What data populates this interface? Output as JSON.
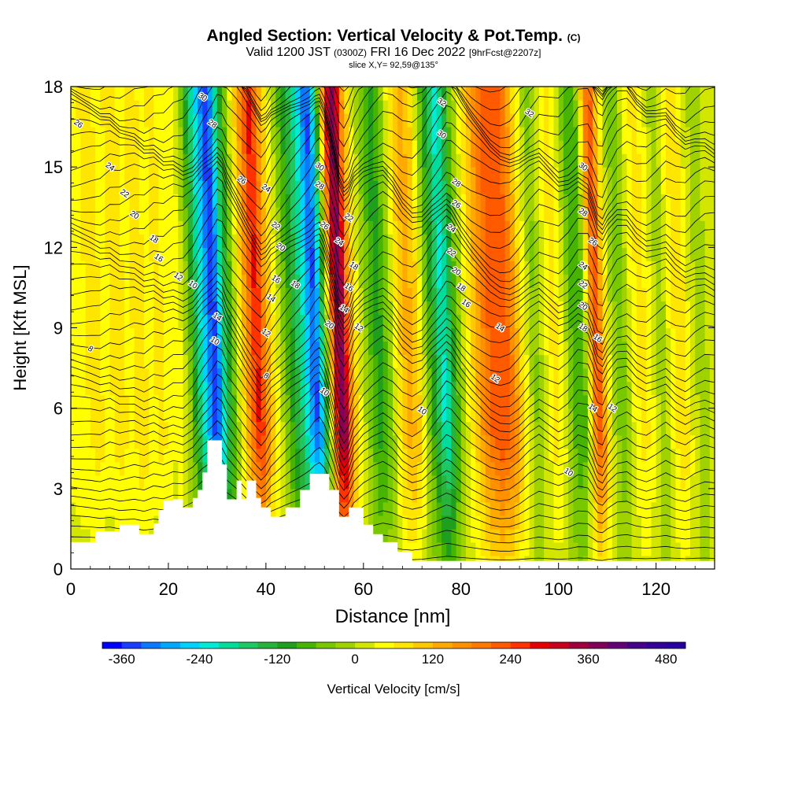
{
  "header": {
    "title_main": "Angled Section: Vertical Velocity & Pot.Temp.",
    "title_unit": "(C)",
    "valid_prefix": "Valid 1200 JST",
    "valid_z": "(0300Z)",
    "valid_date": "FRI 16 Dec 2022",
    "valid_fcst": "[9hrFcst@2207z]",
    "slice": "slice X,Y= 92,59@135°"
  },
  "chart_data": {
    "type": "heatmap",
    "xlabel": "Distance [nm]",
    "ylabel": "Height [Kft MSL]",
    "xlim": [
      0,
      132
    ],
    "ylim": [
      0,
      18
    ],
    "x_ticks": [
      0,
      20,
      40,
      60,
      80,
      100,
      120
    ],
    "y_ticks": [
      0,
      3,
      6,
      9,
      12,
      15,
      18
    ],
    "colorbar": {
      "label": "Vertical Velocity [cm/s]",
      "tick_values": [
        -360,
        -240,
        -120,
        0,
        120,
        240,
        360,
        480
      ],
      "tick_labels": [
        "-360",
        "-240",
        "-120",
        "0",
        "120",
        "240",
        "360",
        "480"
      ],
      "range": [
        -390,
        510
      ],
      "step": 30,
      "colors": [
        "#0000ff",
        "#1a3cff",
        "#0a78ff",
        "#00a8ff",
        "#00d2ff",
        "#00ebd7",
        "#00dc9b",
        "#1ec864",
        "#28b43c",
        "#1ea01e",
        "#46b400",
        "#78c800",
        "#a0d200",
        "#d2e600",
        "#ffff00",
        "#ffe600",
        "#ffc800",
        "#ffaa00",
        "#ff9100",
        "#ff7800",
        "#ff5a00",
        "#ff3200",
        "#e60000",
        "#c8001e",
        "#a0003c",
        "#82005a",
        "#640078",
        "#46008c",
        "#320096",
        "#2800a0"
      ]
    },
    "terrain": [
      [
        0,
        1.0
      ],
      [
        5,
        1.0
      ],
      [
        5,
        1.4
      ],
      [
        10,
        1.4
      ],
      [
        10,
        1.65
      ],
      [
        14,
        1.65
      ],
      [
        14,
        1.3
      ],
      [
        17,
        1.3
      ],
      [
        17,
        1.7
      ],
      [
        18,
        1.7
      ],
      [
        18,
        2.2
      ],
      [
        19,
        2.2
      ],
      [
        19,
        2.55
      ],
      [
        21,
        2.55
      ],
      [
        21,
        2.6
      ],
      [
        23,
        2.6
      ],
      [
        23,
        2.3
      ],
      [
        25,
        2.3
      ],
      [
        25,
        2.65
      ],
      [
        26,
        2.65
      ],
      [
        26,
        2.95
      ],
      [
        27,
        2.95
      ],
      [
        27,
        3.6
      ],
      [
        28,
        3.6
      ],
      [
        28,
        4.8
      ],
      [
        31,
        4.8
      ],
      [
        31,
        3.9
      ],
      [
        32,
        3.9
      ],
      [
        32,
        2.6
      ],
      [
        34,
        2.6
      ],
      [
        34,
        3.3
      ],
      [
        35,
        3.3
      ],
      [
        35,
        2.6
      ],
      [
        36,
        2.6
      ],
      [
        36,
        3.3
      ],
      [
        38,
        3.3
      ],
      [
        38,
        2.65
      ],
      [
        39,
        2.65
      ],
      [
        39,
        2.3
      ],
      [
        41,
        2.3
      ],
      [
        41,
        1.95
      ],
      [
        44,
        1.95
      ],
      [
        44,
        2.3
      ],
      [
        47,
        2.3
      ],
      [
        47,
        2.95
      ],
      [
        49,
        2.95
      ],
      [
        49,
        3.55
      ],
      [
        53,
        3.55
      ],
      [
        53,
        2.95
      ],
      [
        55,
        2.95
      ],
      [
        55,
        1.95
      ],
      [
        57,
        1.95
      ],
      [
        57,
        2.3
      ],
      [
        60,
        2.3
      ],
      [
        60,
        1.65
      ],
      [
        62,
        1.65
      ],
      [
        62,
        1.3
      ],
      [
        64,
        1.3
      ],
      [
        64,
        1.0
      ],
      [
        67,
        1.0
      ],
      [
        67,
        0.65
      ],
      [
        70,
        0.65
      ],
      [
        70,
        0.3
      ],
      [
        132,
        0.3
      ]
    ],
    "w_profile": [
      [
        0,
        40
      ],
      [
        4,
        60
      ],
      [
        6,
        80
      ],
      [
        8,
        40
      ],
      [
        10,
        80
      ],
      [
        13,
        50
      ],
      [
        15,
        90
      ],
      [
        17,
        40
      ],
      [
        19,
        80
      ],
      [
        21,
        30
      ],
      [
        23,
        50
      ],
      [
        25,
        -30
      ],
      [
        27,
        -180
      ],
      [
        29,
        -290
      ],
      [
        30,
        -360
      ],
      [
        31,
        -320
      ],
      [
        32,
        -200
      ],
      [
        34,
        -60
      ],
      [
        36,
        90
      ],
      [
        38,
        220
      ],
      [
        39,
        280
      ],
      [
        40,
        230
      ],
      [
        41,
        140
      ],
      [
        43,
        40
      ],
      [
        45,
        -60
      ],
      [
        47,
        -140
      ],
      [
        49,
        -230
      ],
      [
        50,
        -300
      ],
      [
        51,
        -340
      ],
      [
        52,
        -250
      ],
      [
        53,
        -100
      ],
      [
        54,
        80
      ],
      [
        55,
        300
      ],
      [
        56,
        390
      ],
      [
        57,
        320
      ],
      [
        58,
        160
      ],
      [
        60,
        30
      ],
      [
        62,
        -50
      ],
      [
        64,
        -110
      ],
      [
        66,
        -40
      ],
      [
        68,
        80
      ],
      [
        70,
        140
      ],
      [
        72,
        90
      ],
      [
        74,
        -50
      ],
      [
        76,
        -160
      ],
      [
        77,
        -220
      ],
      [
        78,
        -190
      ],
      [
        80,
        -60
      ],
      [
        82,
        40
      ],
      [
        84,
        120
      ],
      [
        86,
        200
      ],
      [
        88,
        240
      ],
      [
        90,
        230
      ],
      [
        92,
        150
      ],
      [
        94,
        40
      ],
      [
        96,
        -40
      ],
      [
        98,
        20
      ],
      [
        100,
        80
      ],
      [
        102,
        20
      ],
      [
        104,
        -90
      ],
      [
        106,
        -60
      ],
      [
        107,
        60
      ],
      [
        108,
        200
      ],
      [
        109,
        230
      ],
      [
        110,
        120
      ],
      [
        112,
        -20
      ],
      [
        114,
        -50
      ],
      [
        116,
        40
      ],
      [
        118,
        80
      ],
      [
        120,
        30
      ],
      [
        122,
        -30
      ],
      [
        124,
        50
      ],
      [
        126,
        90
      ],
      [
        128,
        20
      ],
      [
        130,
        -20
      ],
      [
        132,
        10
      ]
    ],
    "contour_labels": [
      {
        "text": "26",
        "x": 1.5,
        "y": 16.6
      },
      {
        "text": "24",
        "x": 8,
        "y": 15.0
      },
      {
        "text": "22",
        "x": 11,
        "y": 14.0
      },
      {
        "text": "20",
        "x": 13,
        "y": 13.2
      },
      {
        "text": "18",
        "x": 17,
        "y": 12.3
      },
      {
        "text": "16",
        "x": 18,
        "y": 11.6
      },
      {
        "text": "12",
        "x": 22,
        "y": 10.9
      },
      {
        "text": "8",
        "x": 4,
        "y": 8.2
      },
      {
        "text": "10",
        "x": 25,
        "y": 10.6
      },
      {
        "text": "10",
        "x": 29.5,
        "y": 8.5
      },
      {
        "text": "14",
        "x": 30,
        "y": 9.4
      },
      {
        "text": "30",
        "x": 27,
        "y": 17.6
      },
      {
        "text": "28",
        "x": 29,
        "y": 16.6
      },
      {
        "text": "26",
        "x": 35,
        "y": 14.5
      },
      {
        "text": "24",
        "x": 40,
        "y": 14.2
      },
      {
        "text": "22",
        "x": 42,
        "y": 12.8
      },
      {
        "text": "20",
        "x": 43,
        "y": 12.0
      },
      {
        "text": "16",
        "x": 42,
        "y": 10.8
      },
      {
        "text": "14",
        "x": 41,
        "y": 10.1
      },
      {
        "text": "12",
        "x": 40,
        "y": 8.8
      },
      {
        "text": "8",
        "x": 40,
        "y": 7.2
      },
      {
        "text": "18",
        "x": 46,
        "y": 10.6
      },
      {
        "text": "30",
        "x": 51,
        "y": 15.0
      },
      {
        "text": "28",
        "x": 51,
        "y": 14.3
      },
      {
        "text": "26",
        "x": 52,
        "y": 12.8
      },
      {
        "text": "24",
        "x": 55,
        "y": 12.2
      },
      {
        "text": "22",
        "x": 57,
        "y": 13.1
      },
      {
        "text": "20",
        "x": 53,
        "y": 9.1
      },
      {
        "text": "18",
        "x": 58,
        "y": 11.3
      },
      {
        "text": "16",
        "x": 57,
        "y": 10.5
      },
      {
        "text": "14",
        "x": 56,
        "y": 9.7
      },
      {
        "text": "12",
        "x": 59,
        "y": 9.0
      },
      {
        "text": "10",
        "x": 52,
        "y": 6.6
      },
      {
        "text": "10",
        "x": 72,
        "y": 5.9
      },
      {
        "text": "32",
        "x": 76,
        "y": 17.4
      },
      {
        "text": "30",
        "x": 76,
        "y": 16.2
      },
      {
        "text": "28",
        "x": 79,
        "y": 14.4
      },
      {
        "text": "26",
        "x": 79,
        "y": 13.6
      },
      {
        "text": "24",
        "x": 78,
        "y": 12.7
      },
      {
        "text": "22",
        "x": 78,
        "y": 11.8
      },
      {
        "text": "20",
        "x": 79,
        "y": 11.1
      },
      {
        "text": "18",
        "x": 80,
        "y": 10.5
      },
      {
        "text": "16",
        "x": 81,
        "y": 9.9
      },
      {
        "text": "14",
        "x": 88,
        "y": 9.0
      },
      {
        "text": "12",
        "x": 87,
        "y": 7.1
      },
      {
        "text": "32",
        "x": 94,
        "y": 17.0
      },
      {
        "text": "30",
        "x": 105,
        "y": 15.0
      },
      {
        "text": "28",
        "x": 105,
        "y": 13.3
      },
      {
        "text": "26",
        "x": 107,
        "y": 12.2
      },
      {
        "text": "24",
        "x": 105,
        "y": 11.3
      },
      {
        "text": "22",
        "x": 105,
        "y": 10.6
      },
      {
        "text": "20",
        "x": 105,
        "y": 9.8
      },
      {
        "text": "18",
        "x": 105,
        "y": 9.0
      },
      {
        "text": "16",
        "x": 108,
        "y": 8.6
      },
      {
        "text": "14",
        "x": 107,
        "y": 6.0
      },
      {
        "text": "12",
        "x": 111,
        "y": 6.0
      },
      {
        "text": "10",
        "x": 102,
        "y": 3.6
      }
    ]
  }
}
